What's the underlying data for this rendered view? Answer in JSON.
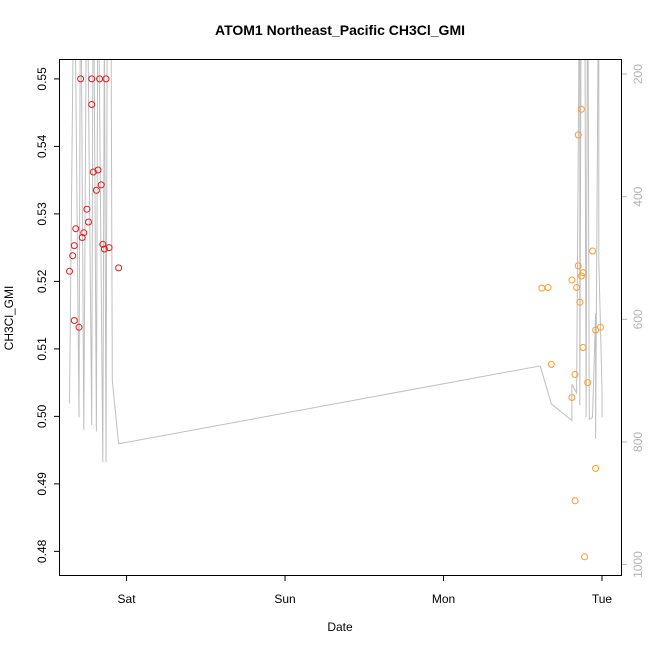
{
  "chart_data": {
    "type": "scatter",
    "title": "ATOM1 Northeast_Pacific CH3Cl_GMI",
    "xlabel": "Date",
    "ylabel": "CH3Cl_GMI",
    "x_unit": "days",
    "xlim": [
      -0.42,
      3.12
    ],
    "ylim": [
      0.4765,
      0.5528
    ],
    "x_ticks": [
      {
        "label": "Sat",
        "value": 0
      },
      {
        "label": "Sun",
        "value": 1
      },
      {
        "label": "Mon",
        "value": 2
      },
      {
        "label": "Tue",
        "value": 3
      }
    ],
    "y_ticks": [
      0.48,
      0.49,
      0.5,
      0.51,
      0.52,
      0.53,
      0.54,
      0.55
    ],
    "y2_ticks": [
      200,
      400,
      600,
      800,
      1000
    ],
    "y2lim": [
      1017,
      177
    ],
    "colors": {
      "series_red": "#e41a1c",
      "series_orange": "#ff9a2e",
      "altitude_line": "#bfbfbf",
      "right_axis": "#b3b3b3"
    },
    "series": [
      {
        "color": "#e41a1c",
        "points": [
          [
            -0.36,
            0.5215
          ],
          [
            -0.34,
            0.5238
          ],
          [
            -0.33,
            0.5253
          ],
          [
            -0.33,
            0.5142
          ],
          [
            -0.32,
            0.5278
          ],
          [
            -0.3,
            0.5132
          ],
          [
            -0.29,
            0.55
          ],
          [
            -0.28,
            0.5265
          ],
          [
            -0.27,
            0.5272
          ],
          [
            -0.25,
            0.5307
          ],
          [
            -0.24,
            0.5288
          ],
          [
            -0.22,
            0.55
          ],
          [
            -0.22,
            0.5462
          ],
          [
            -0.21,
            0.5362
          ],
          [
            -0.19,
            0.5335
          ],
          [
            -0.18,
            0.5365
          ],
          [
            -0.17,
            0.55
          ],
          [
            -0.16,
            0.5343
          ],
          [
            -0.15,
            0.5255
          ],
          [
            -0.14,
            0.5248
          ],
          [
            -0.13,
            0.55
          ],
          [
            -0.11,
            0.525
          ],
          [
            -0.05,
            0.522
          ]
        ]
      },
      {
        "color": "#ff9a2e",
        "points": [
          [
            2.62,
            0.519
          ],
          [
            2.66,
            0.5191
          ],
          [
            2.68,
            0.5077
          ],
          [
            2.81,
            0.5202
          ],
          [
            2.81,
            0.5028
          ],
          [
            2.83,
            0.5062
          ],
          [
            2.83,
            0.4875
          ],
          [
            2.84,
            0.5191
          ],
          [
            2.85,
            0.5417
          ],
          [
            2.85,
            0.5223
          ],
          [
            2.86,
            0.5169
          ],
          [
            2.87,
            0.5208
          ],
          [
            2.87,
            0.5455
          ],
          [
            2.88,
            0.5213
          ],
          [
            2.88,
            0.5102
          ],
          [
            2.89,
            0.4792
          ],
          [
            2.91,
            0.505
          ],
          [
            2.94,
            0.5245
          ],
          [
            2.96,
            0.4923
          ],
          [
            2.96,
            0.5128
          ],
          [
            2.99,
            0.5132
          ]
        ]
      }
    ],
    "altitude": [
      [
        -0.36,
        737
      ],
      [
        -0.33,
        -50
      ],
      [
        -0.3,
        760
      ],
      [
        -0.29,
        -50
      ],
      [
        -0.27,
        780
      ],
      [
        -0.25,
        -50
      ],
      [
        -0.22,
        773
      ],
      [
        -0.21,
        -50
      ],
      [
        -0.19,
        783
      ],
      [
        -0.18,
        -50
      ],
      [
        -0.15,
        833
      ],
      [
        -0.14,
        100
      ],
      [
        -0.13,
        833
      ],
      [
        -0.12,
        -50
      ],
      [
        -0.1,
        -50
      ],
      [
        -0.09,
        700
      ],
      [
        -0.05,
        803
      ],
      [
        2.61,
        676
      ],
      [
        2.68,
        738
      ],
      [
        2.81,
        765
      ],
      [
        2.81,
        706
      ],
      [
        2.84,
        720
      ],
      [
        2.86,
        -50
      ],
      [
        2.86,
        740
      ],
      [
        2.87,
        -50
      ],
      [
        2.89,
        -50
      ],
      [
        2.9,
        760
      ],
      [
        2.91,
        -50
      ],
      [
        2.92,
        763
      ],
      [
        2.94,
        760
      ],
      [
        2.96,
        590
      ],
      [
        2.96,
        795
      ],
      [
        2.98,
        -50
      ],
      [
        2.98,
        503
      ],
      [
        3.0,
        712
      ],
      [
        3.0,
        760
      ]
    ]
  }
}
